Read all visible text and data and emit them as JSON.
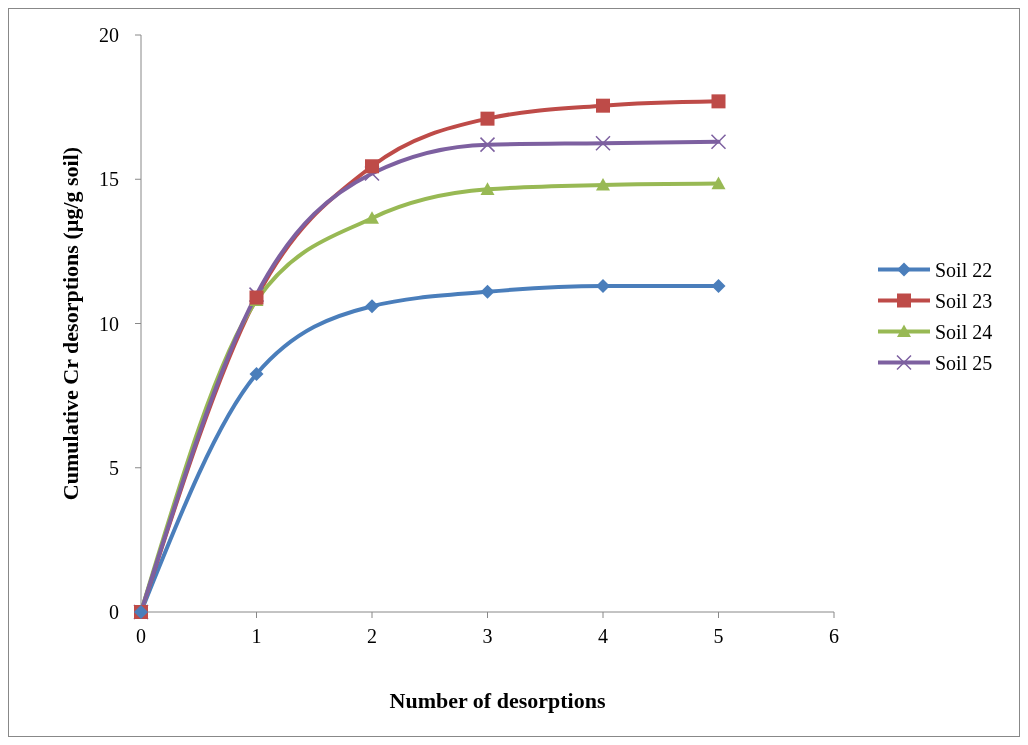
{
  "chart_data": {
    "type": "line",
    "xlabel": "Number of desorptions",
    "ylabel": "Cumulative Cr desorptions (µg/g soil)",
    "x": [
      0,
      1,
      2,
      3,
      4,
      5
    ],
    "xlim": [
      0,
      6
    ],
    "xticks": [
      0,
      1,
      2,
      3,
      4,
      5,
      6
    ],
    "ylim": [
      0,
      20
    ],
    "yticks": [
      0,
      5,
      10,
      15,
      20
    ],
    "grid": false,
    "legend": "right",
    "line_style": "solid",
    "series": [
      {
        "name": "Soil 22",
        "color": "#4a7ebb",
        "marker": "diamond",
        "values": [
          0,
          8.25,
          10.6,
          11.1,
          11.3,
          11.3
        ]
      },
      {
        "name": "Soil 23",
        "color": "#be4b48",
        "marker": "square",
        "values": [
          0,
          10.9,
          15.45,
          17.1,
          17.55,
          17.7
        ]
      },
      {
        "name": "Soil 24",
        "color": "#98b954",
        "marker": "triangle",
        "values": [
          0,
          10.8,
          13.65,
          14.65,
          14.8,
          14.85
        ]
      },
      {
        "name": "Soil 25",
        "color": "#7d60a0",
        "marker": "cross",
        "values": [
          0,
          11,
          15.2,
          16.2,
          16.25,
          16.3
        ]
      }
    ]
  }
}
